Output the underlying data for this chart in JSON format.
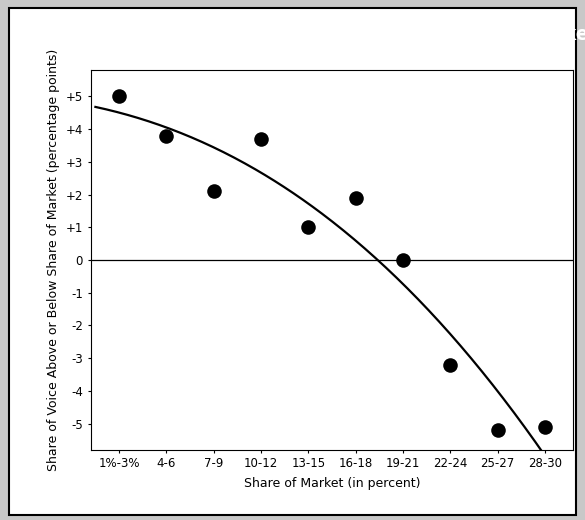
{
  "title": "Curve Comparing Share of Voice with Share of Market",
  "xlabel": "Share of Market (in percent)",
  "ylabel": "Share of Voice Above or Below Share of Market (percentage points)",
  "x_labels": [
    "1%-3%",
    "4-6",
    "7-9",
    "10-12",
    "13-15",
    "16-18",
    "19-21",
    "22-24",
    "25-27",
    "28-30"
  ],
  "scatter_x": [
    1,
    2,
    3,
    4,
    5,
    6,
    7,
    8,
    9,
    10
  ],
  "scatter_y": [
    5.0,
    3.8,
    2.1,
    3.7,
    1.0,
    1.9,
    0.0,
    -3.2,
    -5.2,
    -5.1
  ],
  "yticks": [
    -5,
    -4,
    -3,
    -2,
    -1,
    0,
    1,
    2,
    3,
    4,
    5
  ],
  "ylabels": [
    "-5",
    "-4",
    "-3",
    "-2",
    "-1",
    "0",
    "+1",
    "+2",
    "+3",
    "+4",
    "+5"
  ],
  "ylim": [
    -5.8,
    5.8
  ],
  "xlim": [
    0.4,
    10.6
  ],
  "title_bg": "#000000",
  "title_color": "#ffffff",
  "plot_bg": "#ffffff",
  "outer_bg": "#c8c8c8",
  "frame_bg": "#ffffff",
  "dot_color": "#000000",
  "curve_color": "#000000",
  "zero_line_color": "#000000",
  "title_fontsize": 13.5,
  "axis_label_fontsize": 9,
  "tick_fontsize": 8.5
}
